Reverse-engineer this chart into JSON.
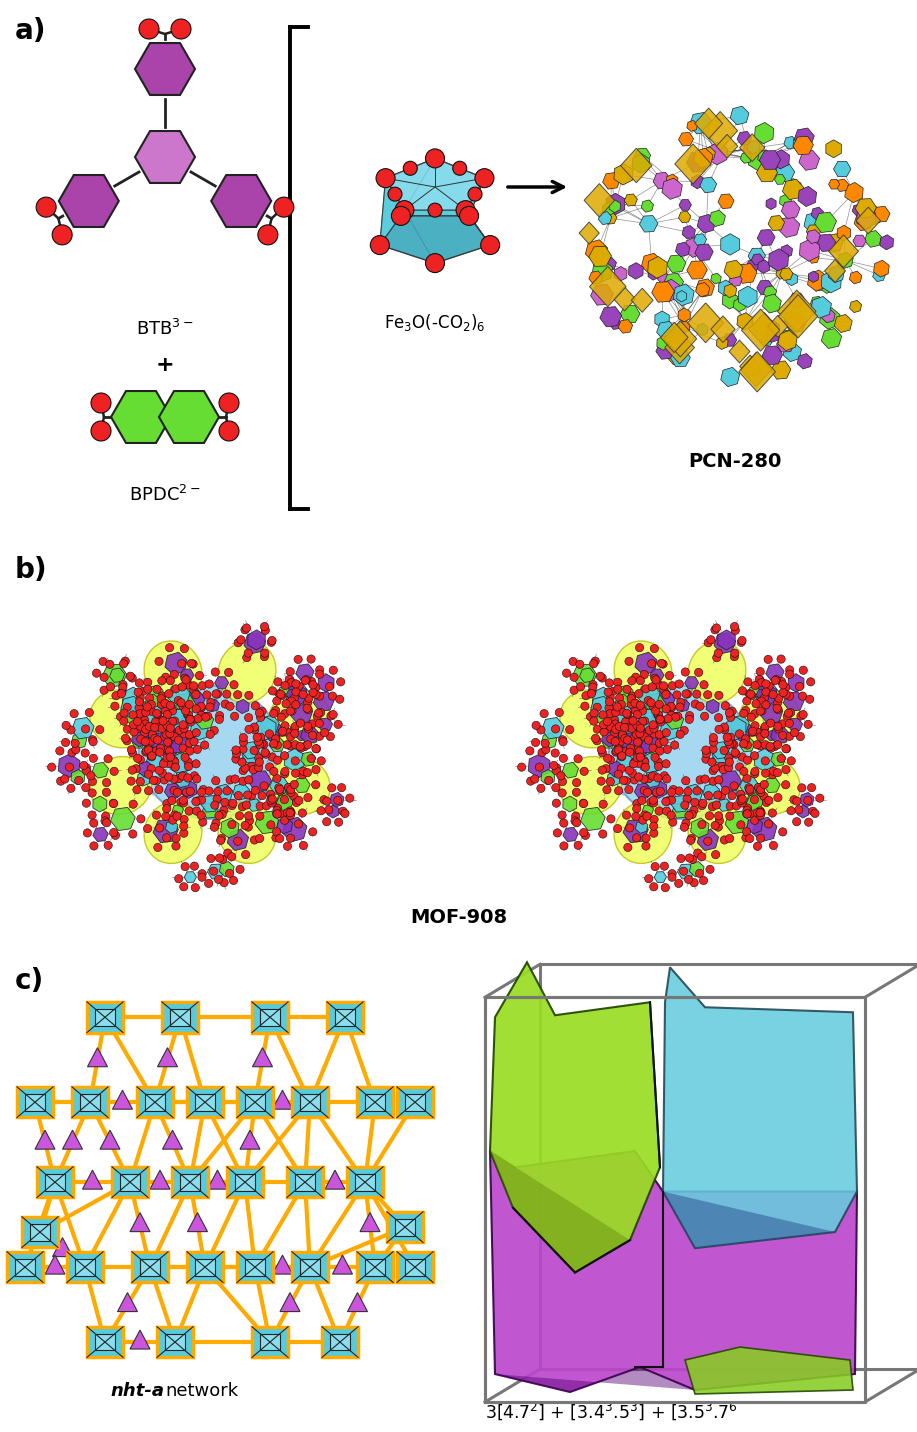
{
  "panel_a_label": "a)",
  "panel_b_label": "b)",
  "panel_c_label": "c)",
  "purple_light": "#CC66CC",
  "purple_mid": "#AA44BB",
  "purple_dark": "#8833AA",
  "green_color": "#66DD33",
  "green_dark": "#44AA22",
  "cyan_color": "#55CCDD",
  "cyan_light": "#88DDEE",
  "red_color": "#EE2222",
  "orange_color": "#FF8800",
  "yellow_color": "#EEFF33",
  "gold_color": "#FFAA00",
  "bg_color": "#FFFFFF",
  "label_fontsize": 20,
  "formula_fontsize": 13,
  "fig_width": 9.17,
  "fig_height": 14.32
}
